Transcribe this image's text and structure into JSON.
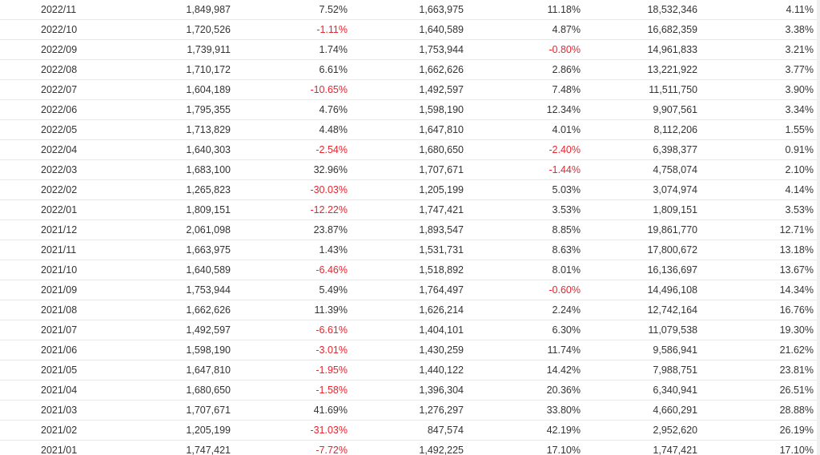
{
  "accent": {
    "negative_color": "#e6252e",
    "text_color": "#333333"
  },
  "rows": [
    [
      "2022/11",
      "1,849,987",
      "7.52%",
      "1,663,975",
      "11.18%",
      "18,532,346",
      "4.11%"
    ],
    [
      "2022/10",
      "1,720,526",
      "-1.11%",
      "1,640,589",
      "4.87%",
      "16,682,359",
      "3.38%"
    ],
    [
      "2022/09",
      "1,739,911",
      "1.74%",
      "1,753,944",
      "-0.80%",
      "14,961,833",
      "3.21%"
    ],
    [
      "2022/08",
      "1,710,172",
      "6.61%",
      "1,662,626",
      "2.86%",
      "13,221,922",
      "3.77%"
    ],
    [
      "2022/07",
      "1,604,189",
      "-10.65%",
      "1,492,597",
      "7.48%",
      "11,511,750",
      "3.90%"
    ],
    [
      "2022/06",
      "1,795,355",
      "4.76%",
      "1,598,190",
      "12.34%",
      "9,907,561",
      "3.34%"
    ],
    [
      "2022/05",
      "1,713,829",
      "4.48%",
      "1,647,810",
      "4.01%",
      "8,112,206",
      "1.55%"
    ],
    [
      "2022/04",
      "1,640,303",
      "-2.54%",
      "1,680,650",
      "-2.40%",
      "6,398,377",
      "0.91%"
    ],
    [
      "2022/03",
      "1,683,100",
      "32.96%",
      "1,707,671",
      "-1.44%",
      "4,758,074",
      "2.10%"
    ],
    [
      "2022/02",
      "1,265,823",
      "-30.03%",
      "1,205,199",
      "5.03%",
      "3,074,974",
      "4.14%"
    ],
    [
      "2022/01",
      "1,809,151",
      "-12.22%",
      "1,747,421",
      "3.53%",
      "1,809,151",
      "3.53%"
    ],
    [
      "2021/12",
      "2,061,098",
      "23.87%",
      "1,893,547",
      "8.85%",
      "19,861,770",
      "12.71%"
    ],
    [
      "2021/11",
      "1,663,975",
      "1.43%",
      "1,531,731",
      "8.63%",
      "17,800,672",
      "13.18%"
    ],
    [
      "2021/10",
      "1,640,589",
      "-6.46%",
      "1,518,892",
      "8.01%",
      "16,136,697",
      "13.67%"
    ],
    [
      "2021/09",
      "1,753,944",
      "5.49%",
      "1,764,497",
      "-0.60%",
      "14,496,108",
      "14.34%"
    ],
    [
      "2021/08",
      "1,662,626",
      "11.39%",
      "1,626,214",
      "2.24%",
      "12,742,164",
      "16.76%"
    ],
    [
      "2021/07",
      "1,492,597",
      "-6.61%",
      "1,404,101",
      "6.30%",
      "11,079,538",
      "19.30%"
    ],
    [
      "2021/06",
      "1,598,190",
      "-3.01%",
      "1,430,259",
      "11.74%",
      "9,586,941",
      "21.62%"
    ],
    [
      "2021/05",
      "1,647,810",
      "-1.95%",
      "1,440,122",
      "14.42%",
      "7,988,751",
      "23.81%"
    ],
    [
      "2021/04",
      "1,680,650",
      "-1.58%",
      "1,396,304",
      "20.36%",
      "6,340,941",
      "26.51%"
    ],
    [
      "2021/03",
      "1,707,671",
      "41.69%",
      "1,276,297",
      "33.80%",
      "4,660,291",
      "28.88%"
    ],
    [
      "2021/02",
      "1,205,199",
      "-31.03%",
      "847,574",
      "42.19%",
      "2,952,620",
      "26.19%"
    ],
    [
      "2021/01",
      "1,747,421",
      "-7.72%",
      "1,492,225",
      "17.10%",
      "1,747,421",
      "17.10%"
    ]
  ]
}
